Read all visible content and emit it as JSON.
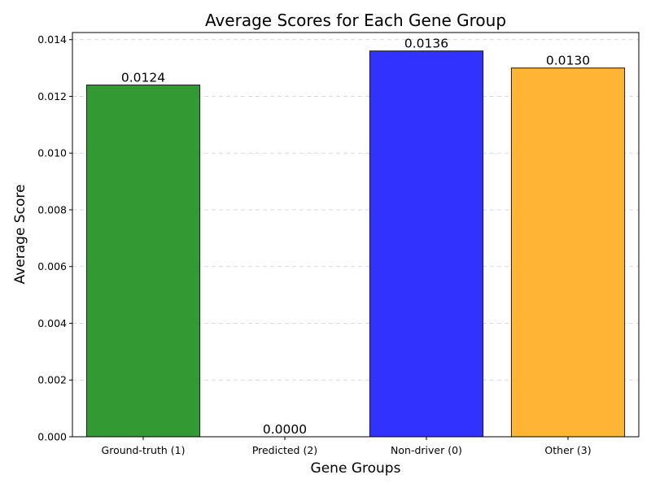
{
  "chart_data": {
    "type": "bar",
    "title": "Average Scores for Each Gene Group",
    "xlabel": "Gene Groups",
    "ylabel": "Average Score",
    "categories": [
      "Ground-truth (1)",
      "Predicted (2)",
      "Non-driver (0)",
      "Other (3)"
    ],
    "values": [
      0.0124,
      0.0,
      0.0136,
      0.013
    ],
    "data_labels": [
      "0.0124",
      "0.0000",
      "0.0136",
      "0.0130"
    ],
    "colors": [
      "#339933",
      "#3232ff",
      "#3232ff",
      "#ffb433"
    ],
    "ylim": [
      0,
      0.01425
    ],
    "yticks": [
      0.0,
      0.002,
      0.004,
      0.006,
      0.008,
      0.01,
      0.012,
      0.014
    ],
    "ytick_labels": [
      "0.000",
      "0.002",
      "0.004",
      "0.006",
      "0.008",
      "0.010",
      "0.012",
      "0.014"
    ],
    "grid": "y-dashed",
    "legend": "none"
  }
}
